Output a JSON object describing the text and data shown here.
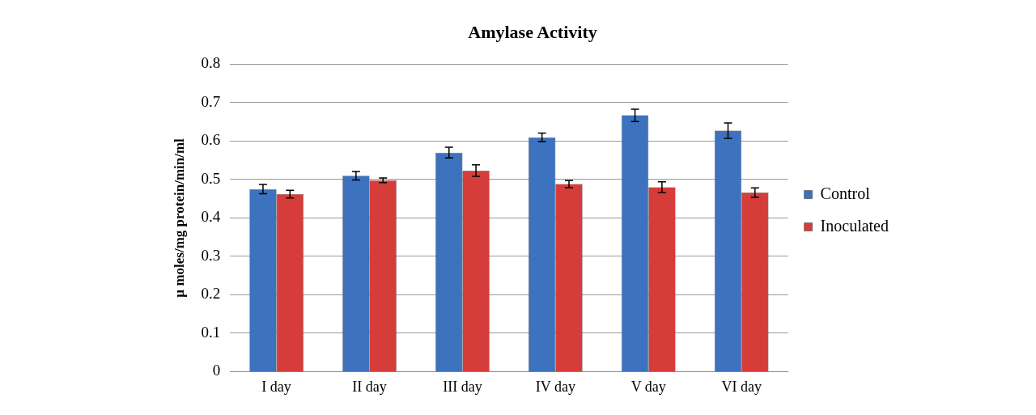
{
  "chart_data": {
    "type": "bar",
    "title": "Amylase Activity",
    "ylabel": "µ moles/mg protein/min/ml",
    "categories": [
      "I day",
      "II day",
      "III day",
      "IV day",
      "V day",
      "VI day"
    ],
    "series": [
      {
        "name": "Control",
        "color": "#3d72bf",
        "values": [
          0.475,
          0.51,
          0.57,
          0.61,
          0.667,
          0.627
        ],
        "errors": [
          0.012,
          0.011,
          0.014,
          0.011,
          0.016,
          0.02
        ]
      },
      {
        "name": "Inoculated",
        "color": "#d63d3a",
        "values": [
          0.462,
          0.498,
          0.523,
          0.488,
          0.48,
          0.466
        ],
        "errors": [
          0.01,
          0.006,
          0.015,
          0.009,
          0.014,
          0.012
        ]
      }
    ],
    "ylim": [
      0,
      0.8
    ],
    "yticks": [
      0,
      0.1,
      0.2,
      0.3,
      0.4,
      0.5,
      0.6,
      0.7,
      0.8
    ],
    "grid": "y",
    "legend": "right"
  }
}
